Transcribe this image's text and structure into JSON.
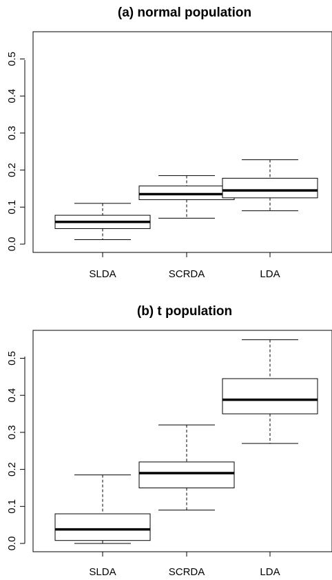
{
  "chart_data": [
    {
      "type": "boxplot",
      "title": "(a) normal population",
      "xlabel": "",
      "ylabel": "",
      "ylim": [
        0,
        0.55
      ],
      "yticks": [
        "0.0",
        "0.1",
        "0.2",
        "0.3",
        "0.4",
        "0.5"
      ],
      "categories": [
        "SLDA",
        "SCRDA",
        "LDA"
      ],
      "boxes": [
        {
          "label": "SLDA",
          "min": 0.012,
          "q1": 0.042,
          "median": 0.06,
          "q3": 0.078,
          "max": 0.11
        },
        {
          "label": "SCRDA",
          "min": 0.07,
          "q1": 0.12,
          "median": 0.135,
          "q3": 0.157,
          "max": 0.185
        },
        {
          "label": "LDA",
          "min": 0.09,
          "q1": 0.125,
          "median": 0.145,
          "q3": 0.178,
          "max": 0.228
        }
      ],
      "grid": false,
      "box_color": "#ffffff",
      "line_color": "#000000"
    },
    {
      "type": "boxplot",
      "title": "(b) t population",
      "xlabel": "",
      "ylabel": "",
      "ylim": [
        0,
        0.55
      ],
      "yticks": [
        "0.0",
        "0.1",
        "0.2",
        "0.3",
        "0.4",
        "0.5"
      ],
      "categories": [
        "SLDA",
        "SCRDA",
        "LDA"
      ],
      "boxes": [
        {
          "label": "SLDA",
          "min": 0.0,
          "q1": 0.008,
          "median": 0.038,
          "q3": 0.08,
          "max": 0.185
        },
        {
          "label": "SCRDA",
          "min": 0.09,
          "q1": 0.15,
          "median": 0.19,
          "q3": 0.22,
          "max": 0.32
        },
        {
          "label": "LDA",
          "min": 0.27,
          "q1": 0.35,
          "median": 0.388,
          "q3": 0.445,
          "max": 0.55
        }
      ],
      "grid": false,
      "box_color": "#ffffff",
      "line_color": "#000000"
    }
  ]
}
